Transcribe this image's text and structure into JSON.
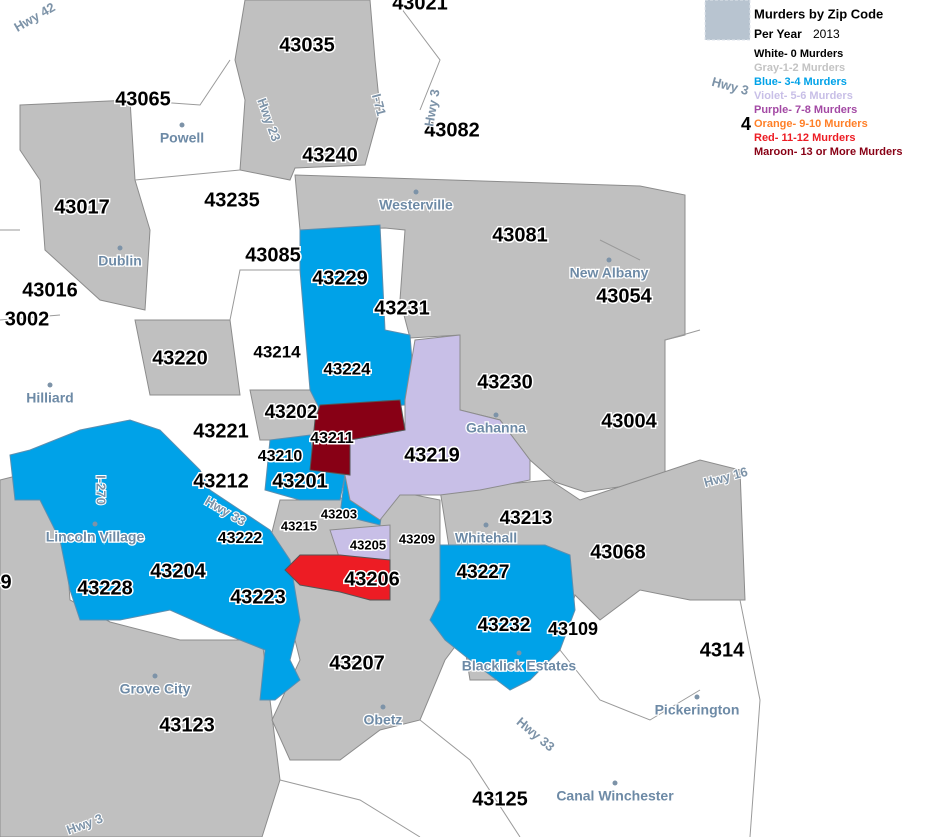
{
  "legend": {
    "title": "Murders by Zip Code",
    "subtitle": "Per Year",
    "year": "2013",
    "items": [
      {
        "label": "White- 0 Murders",
        "color": "#000000"
      },
      {
        "label": "Gray-1-2 Murders",
        "color": "#c3c3c3"
      },
      {
        "label": "Blue- 3-4 Murders",
        "color": "#00a2e8"
      },
      {
        "label": "Violet- 5-6 Murders",
        "color": "#c8bfe7"
      },
      {
        "label": "Purple- 7-8 Murders",
        "color": "#a349a4"
      },
      {
        "label": "Orange- 9-10 Murders",
        "color": "#ff7f27"
      },
      {
        "label": "Red- 11-12 Murders",
        "color": "#ed1c24"
      },
      {
        "label": "Maroon- 13 or More Murders",
        "color": "#880015"
      }
    ]
  },
  "zip_labels": [
    "43021",
    "43035",
    "43065",
    "43082",
    "43240",
    "43017",
    "43235",
    "43081",
    "43085",
    "43229",
    "43016",
    "3002",
    "43231",
    "43054",
    "43220",
    "43214",
    "43224",
    "43230",
    "43004",
    "43202",
    "43221",
    "43211",
    "43219",
    "43210",
    "43212",
    "43201",
    "43213",
    "43203",
    "43215",
    "43222",
    "43205",
    "43209",
    "43068",
    "9",
    "43204",
    "43206",
    "43227",
    "43228",
    "43223",
    "43232",
    "43109",
    "4314",
    "43207",
    "43123",
    "43125",
    "4"
  ],
  "place_labels": [
    "Powell",
    "Westerville",
    "Dublin",
    "New Albany",
    "Hilliard",
    "Gahanna",
    "Lincoln Village",
    "Whitehall",
    "Grove City",
    "Blacklick Estates",
    "Obetz",
    "Pickerington",
    "Canal Winchester"
  ],
  "highway_labels": [
    "Hwy 42",
    "Hwy 23",
    "I-71",
    "Hwy 3",
    "Hwy 3",
    "I-270",
    "Hwy 33",
    "Hwy 16",
    "Hwy 33",
    "Hwy 3"
  ]
}
